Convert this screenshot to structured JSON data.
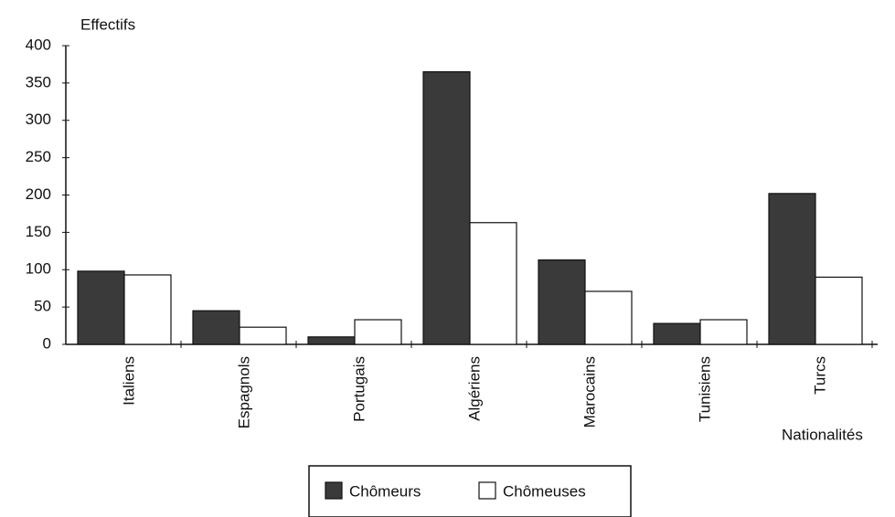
{
  "chart_data": {
    "type": "bar",
    "y_label": "Effectifs",
    "x_label": "Nationalités",
    "categories": [
      "Italiens",
      "Espagnols",
      "Portugais",
      "Algériens",
      "Marocains",
      "Tunisiens",
      "Turcs"
    ],
    "series": [
      {
        "name": "Chômeurs",
        "color": "#3a3a3a",
        "values": [
          98,
          45,
          10,
          365,
          113,
          28,
          202
        ]
      },
      {
        "name": "Chômeuses",
        "color": "#ffffff",
        "values": [
          93,
          23,
          33,
          163,
          71,
          33,
          90
        ]
      }
    ],
    "ylim": [
      0,
      400
    ],
    "yticks": [
      0,
      50,
      100,
      150,
      200,
      250,
      300,
      350,
      400
    ],
    "grid": false,
    "legend": "bottom"
  }
}
